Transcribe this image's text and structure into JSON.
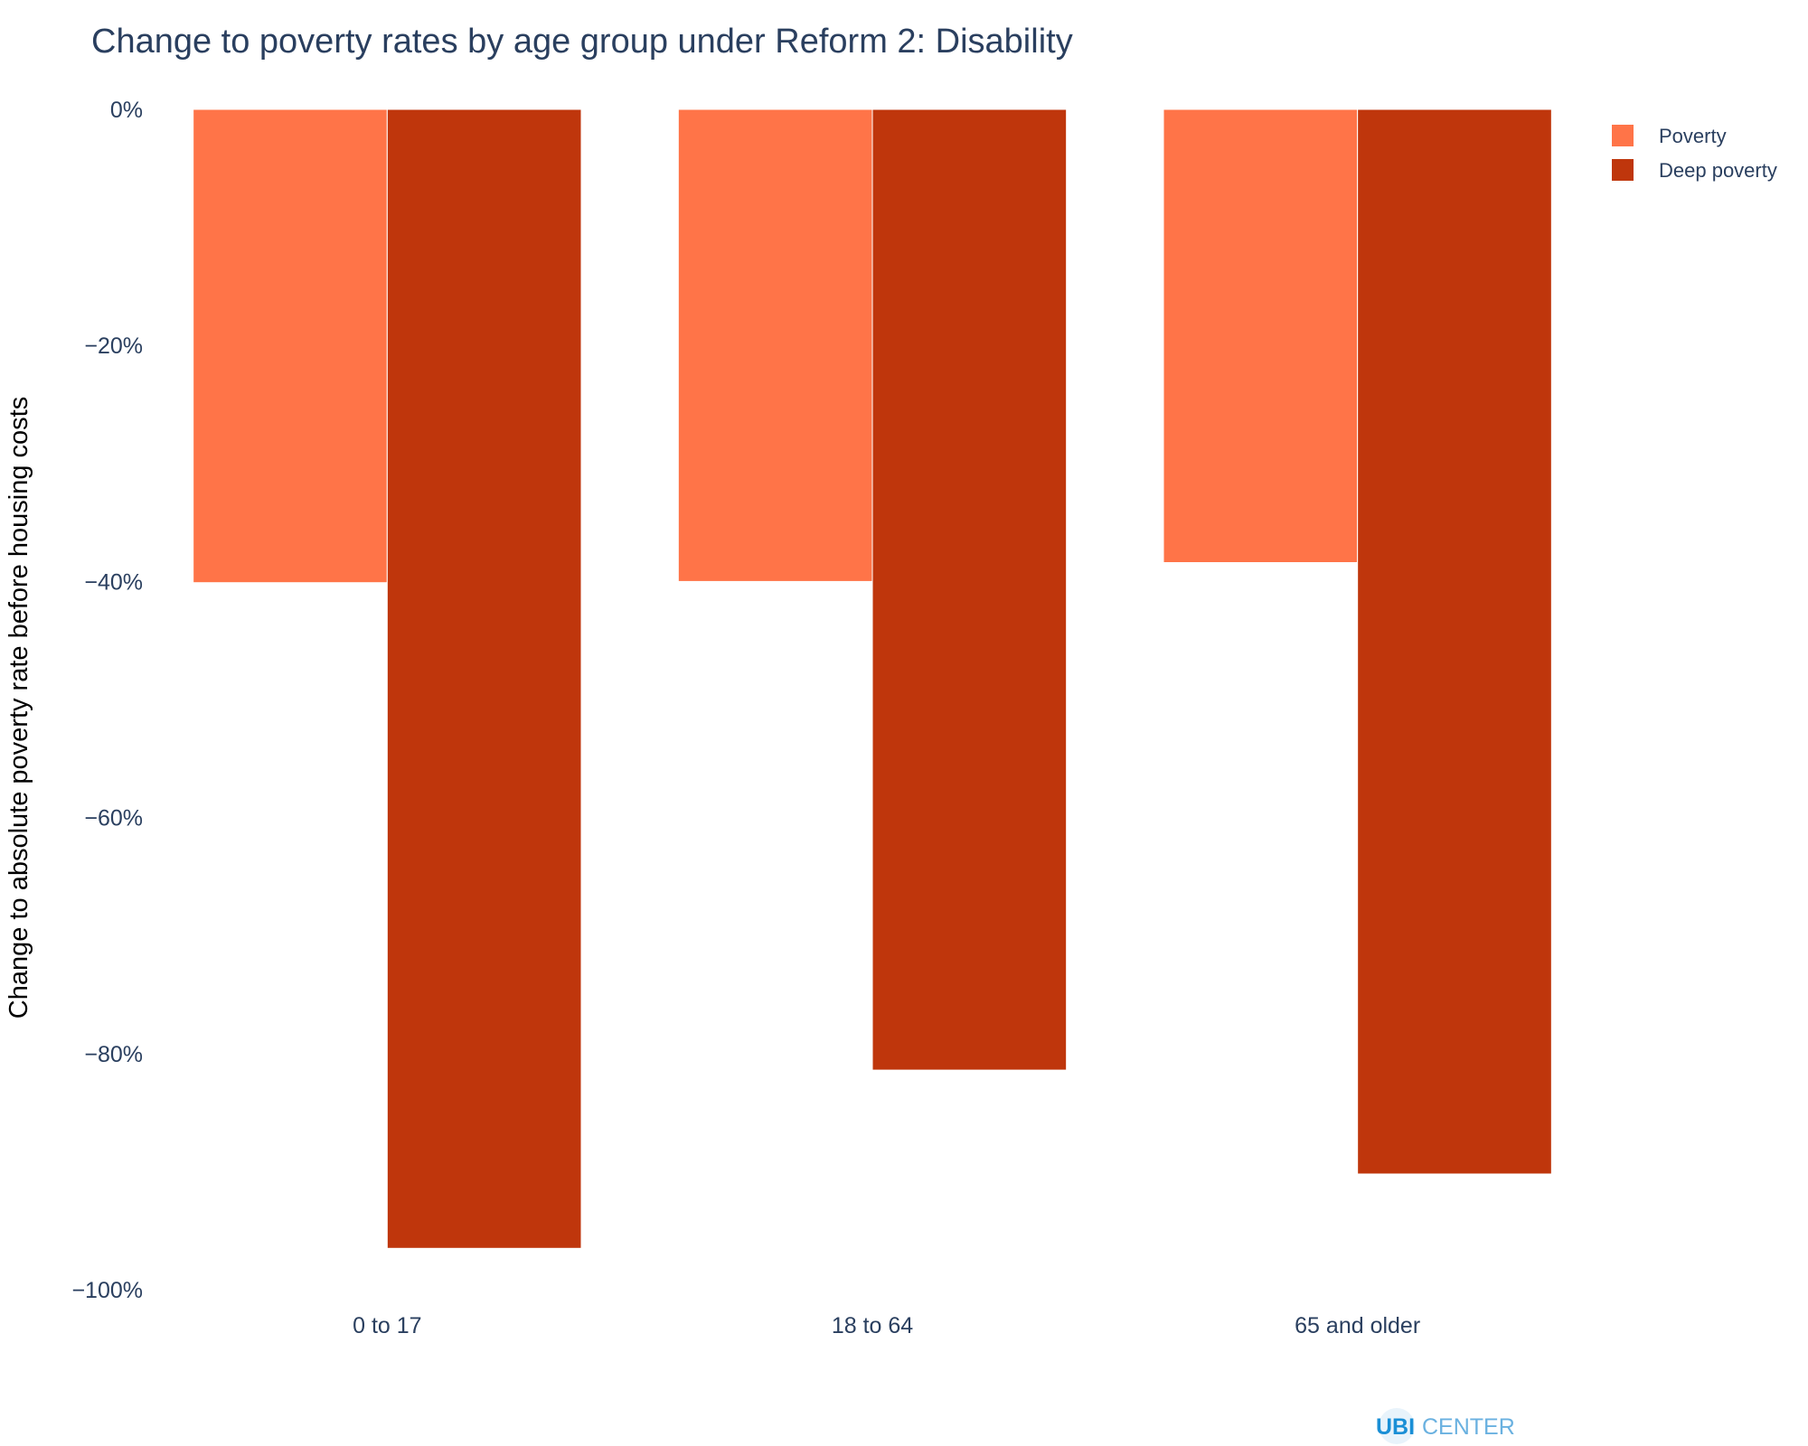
{
  "chart_data": {
    "type": "bar",
    "title": "Change to poverty rates by age group under Reform 2: Disability",
    "ylabel": "Change to absolute poverty rate before housing costs",
    "xlabel": "",
    "categories": [
      "0 to 17",
      "18 to 64",
      "65 and older"
    ],
    "series": [
      {
        "name": "Poverty",
        "color": "#ff7448",
        "values": [
          -40.1,
          -40.0,
          -38.4
        ]
      },
      {
        "name": "Deep poverty",
        "color": "#bf360c",
        "values": [
          -96.5,
          -81.4,
          -90.2
        ]
      }
    ],
    "ylim": [
      -100,
      0
    ],
    "yticks": [
      0,
      -20,
      -40,
      -60,
      -80,
      -100
    ],
    "ytick_labels": [
      "0%",
      "−20%",
      "−40%",
      "−60%",
      "−80%",
      "−100%"
    ],
    "grid": false,
    "legend_position": "top-right"
  },
  "logo": {
    "part1": "UBI",
    "part2": "CENTER",
    "color1": "#1a8fd6",
    "color2": "#6ab1e0"
  }
}
